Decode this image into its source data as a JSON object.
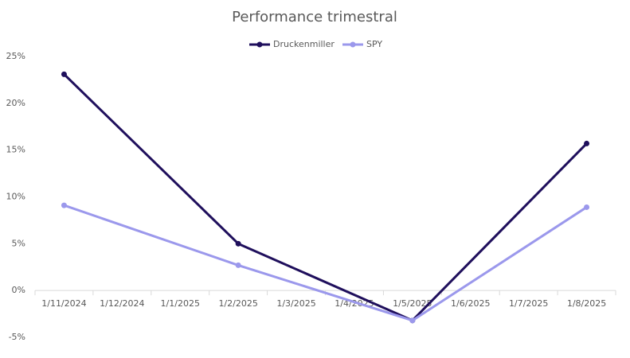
{
  "chart_data": {
    "type": "line",
    "title": "Performance trimestral",
    "xticks": [
      "1/11/2024",
      "1/12/2024",
      "1/1/2025",
      "1/2/2025",
      "1/3/2025",
      "1/4/2025",
      "1/5/2025",
      "1/6/2025",
      "1/7/2025",
      "1/8/2025"
    ],
    "x": [
      "1/11/2024",
      "1/2/2025",
      "1/5/2025",
      "1/8/2025"
    ],
    "series": [
      {
        "name": "Druckenmiller",
        "color": "#1f0f5c",
        "values": [
          23.1,
          5.0,
          -3.2,
          15.7
        ]
      },
      {
        "name": "SPY",
        "color": "#9b98ec",
        "values": [
          9.1,
          2.7,
          -3.2,
          8.9
        ]
      }
    ],
    "ylim": [
      -5,
      25
    ],
    "yticks": [
      {
        "value": -5,
        "label": "-5%"
      },
      {
        "value": 0,
        "label": "0%"
      },
      {
        "value": 5,
        "label": "5%"
      },
      {
        "value": 10,
        "label": "10%"
      },
      {
        "value": 15,
        "label": "15%"
      },
      {
        "value": 20,
        "label": "20%"
      },
      {
        "value": 25,
        "label": "25%"
      }
    ],
    "legend": "top"
  }
}
